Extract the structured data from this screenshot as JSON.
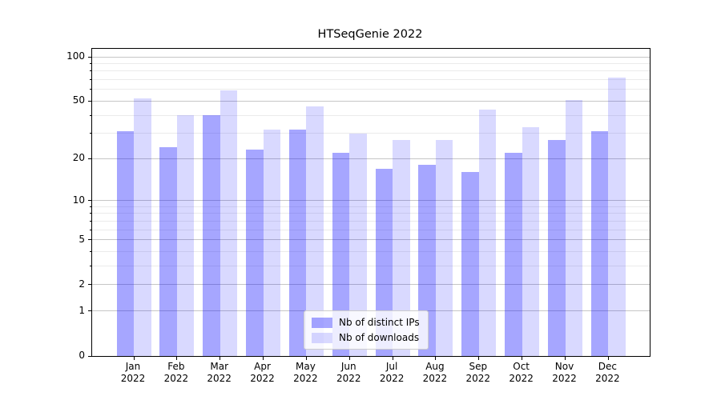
{
  "chart_data": {
    "type": "bar",
    "title": "HTSeqGenie 2022",
    "categories": [
      "Jan",
      "Feb",
      "Mar",
      "Apr",
      "May",
      "Jun",
      "Jul",
      "Aug",
      "Sep",
      "Oct",
      "Nov",
      "Dec"
    ],
    "category_year": "2022",
    "series": [
      {
        "name": "Nb of distinct IPs",
        "color": "rgba(0,0,255,0.35)",
        "values": [
          31,
          24,
          40,
          23,
          32,
          22,
          17,
          18,
          16,
          22,
          27,
          31
        ]
      },
      {
        "name": "Nb of downloads",
        "color": "rgba(0,0,255,0.15)",
        "values": [
          52,
          40,
          59,
          32,
          46,
          30,
          27,
          27,
          44,
          33,
          51,
          72
        ]
      }
    ],
    "yscale": "log1p",
    "ylim": [
      0,
      110
    ],
    "yticks": [
      0,
      1,
      2,
      5,
      10,
      20,
      50,
      100
    ],
    "ytick_labels": [
      "0",
      "1",
      "2",
      "5",
      "10",
      "20",
      "50",
      "100"
    ],
    "minor_gridlines": [
      3,
      4,
      6,
      7,
      8,
      9,
      30,
      40,
      60,
      70,
      80,
      90
    ],
    "grid": true,
    "legend_position": "lower center",
    "xlabel": "",
    "ylabel": ""
  },
  "colors": {
    "bar_distinct_ips": "rgba(0,0,255,0.35)",
    "bar_downloads": "rgba(0,0,255,0.15)",
    "grid_major": "#c6c6c6",
    "grid_minor": "#ebebeb",
    "spine": "#000000",
    "legend_border": "#cccccc"
  }
}
